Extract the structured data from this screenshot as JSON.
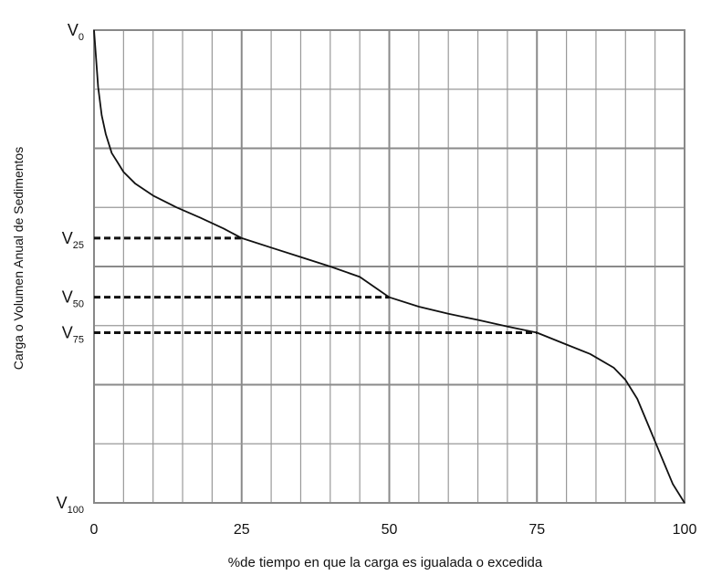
{
  "chart_data": {
    "type": "line",
    "title": "",
    "xlabel": "%de tiempo en que la carga es igualada o excedida",
    "ylabel": "Carga o Volumen Anual de Sedimentos",
    "xlim": [
      0,
      100
    ],
    "ylim": [
      0,
      100
    ],
    "grid": true,
    "x_ticks": [
      0,
      25,
      50,
      75,
      100
    ],
    "x_tick_labels": [
      "0",
      "25",
      "50",
      "75",
      "100"
    ],
    "y_labels": [
      {
        "main": "V",
        "sub": "0",
        "value": 100
      },
      {
        "main": "V",
        "sub": "25",
        "value": 56
      },
      {
        "main": "V",
        "sub": "50",
        "value": 43.5
      },
      {
        "main": "V",
        "sub": "75",
        "value": 36
      },
      {
        "main": "V",
        "sub": "100",
        "value": 0
      }
    ],
    "reference_lines": [
      {
        "x": 25,
        "y": 56
      },
      {
        "x": 50,
        "y": 43.5
      },
      {
        "x": 75,
        "y": 36
      }
    ],
    "series": [
      {
        "x": [
          0,
          0.3,
          0.7,
          1.3,
          2,
          3,
          4,
          5,
          7,
          10,
          14,
          18,
          22,
          25,
          30,
          35,
          40,
          45,
          50,
          55,
          60,
          65,
          70,
          75,
          80,
          84,
          88,
          90,
          92,
          94,
          96,
          98,
          100
        ],
        "y": [
          100,
          95,
          88,
          82,
          78,
          74,
          72,
          70,
          67.5,
          65,
          62.5,
          60.3,
          58,
          56,
          54,
          52,
          50,
          47.8,
          43.5,
          41.5,
          40,
          38.7,
          37.3,
          36,
          33.5,
          31.5,
          28.6,
          26,
          22,
          16,
          10,
          4,
          0
        ]
      }
    ],
    "colors": {
      "curve": "#111111",
      "grid": "#999999",
      "frame": "#888888",
      "dashed": "#111111"
    }
  }
}
